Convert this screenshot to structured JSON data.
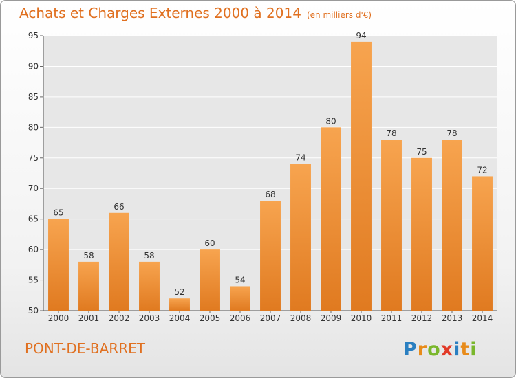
{
  "title": "Achats et Charges Externes 2000 à 2014",
  "subtitle": "(en milliers d'€)",
  "footer": {
    "place": "PONT-DE-BARRET",
    "logo_text": "Proxiti"
  },
  "colors": {
    "bar_top": "#f7a44f",
    "bar_bottom": "#e07a20",
    "title": "#e07020",
    "plot_bg": "#e7e7e7",
    "grid": "#ffffff"
  },
  "chart_data": {
    "type": "bar",
    "title": "Achats et Charges Externes 2000 à 2014",
    "categories": [
      "2000",
      "2001",
      "2002",
      "2003",
      "2004",
      "2005",
      "2006",
      "2007",
      "2008",
      "2009",
      "2010",
      "2011",
      "2012",
      "2013",
      "2014"
    ],
    "values": [
      65,
      58,
      66,
      58,
      52,
      60,
      54,
      68,
      74,
      80,
      94,
      78,
      75,
      78,
      72
    ],
    "ylim": [
      50,
      95
    ],
    "yticks": [
      50,
      55,
      60,
      65,
      70,
      75,
      80,
      85,
      90,
      95
    ],
    "grid": true,
    "data_labels": true
  }
}
